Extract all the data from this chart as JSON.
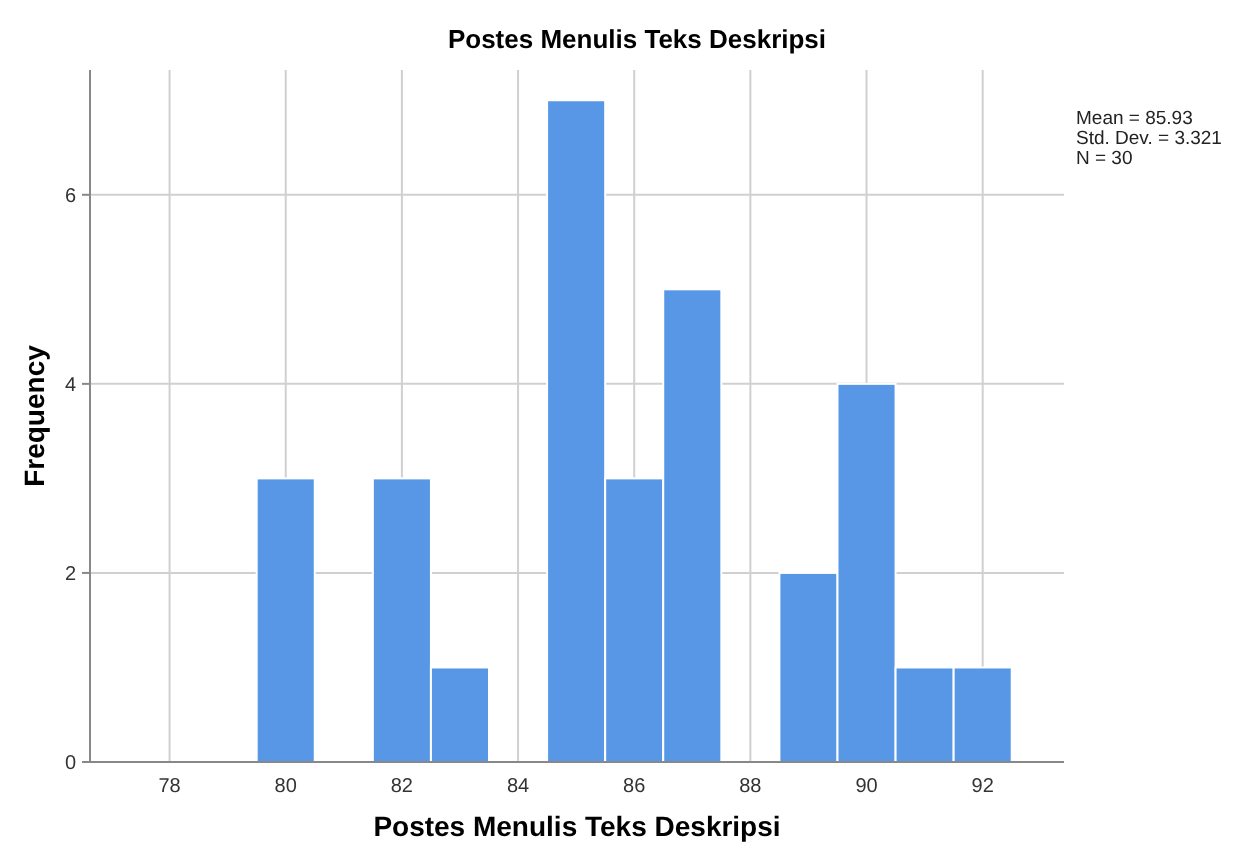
{
  "chart_data": {
    "type": "histogram",
    "title": "Postes Menulis Teks Deskripsi",
    "xlabel": "Postes Menulis Teks Deskripsi",
    "ylabel": "Frequency",
    "bins": [
      79.5,
      80.5,
      81.5,
      82.5,
      83.5,
      84.5,
      85.5,
      86.5,
      87.5,
      88.5,
      89.5,
      90.5,
      91.5,
      92.5
    ],
    "values": [
      3,
      0,
      3,
      1,
      0,
      7,
      3,
      5,
      0,
      2,
      4,
      1,
      1
    ],
    "color": "#5797e6",
    "xlim": [
      76.63,
      93.4
    ],
    "xticks": [
      78,
      80,
      82,
      84,
      86,
      88,
      90,
      92
    ],
    "ylim": [
      0,
      7.32
    ],
    "yticks": [
      0,
      2,
      4,
      6
    ],
    "grid": true,
    "annotations": [
      "Mean = 85.93",
      "Std. Dev. = 3.321",
      "N = 30"
    ]
  }
}
